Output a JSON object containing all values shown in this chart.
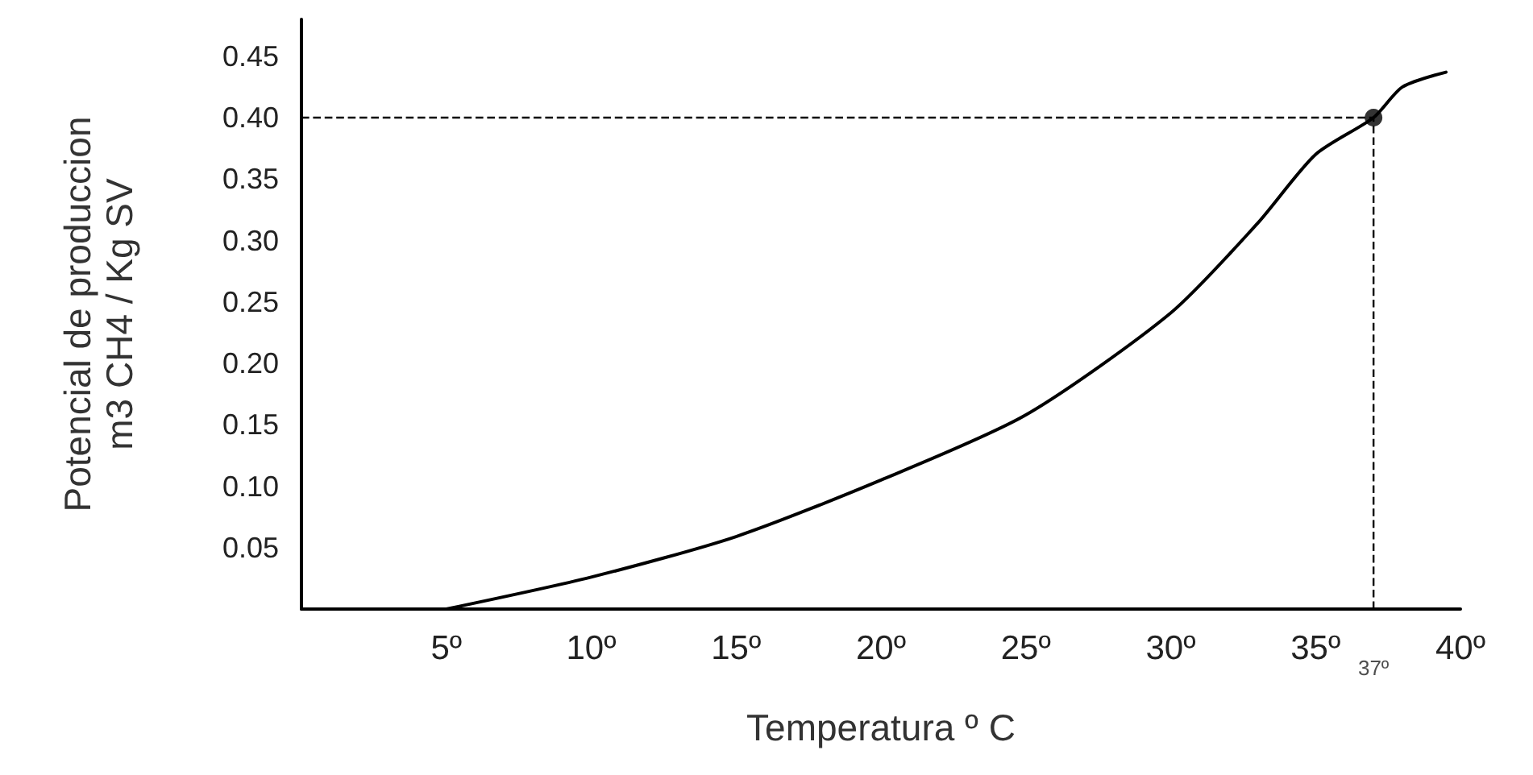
{
  "chart_data": {
    "type": "line",
    "xlabel": "Temperatura º C",
    "ylabel": "Potencial de produccion\nm3 CH4 / Kg SV",
    "xlim": [
      0,
      40
    ],
    "ylim": [
      0,
      0.48
    ],
    "xticks": [
      {
        "value": 5,
        "label": "5º"
      },
      {
        "value": 10,
        "label": "10º"
      },
      {
        "value": 15,
        "label": "15º"
      },
      {
        "value": 20,
        "label": "20º"
      },
      {
        "value": 25,
        "label": "25º"
      },
      {
        "value": 30,
        "label": "30º"
      },
      {
        "value": 35,
        "label": "35º"
      },
      {
        "value": 40,
        "label": "40º"
      }
    ],
    "yticks": [
      {
        "value": 0.05,
        "label": "0.05"
      },
      {
        "value": 0.1,
        "label": "0.10"
      },
      {
        "value": 0.15,
        "label": "0.15"
      },
      {
        "value": 0.2,
        "label": "0.20"
      },
      {
        "value": 0.25,
        "label": "0.25"
      },
      {
        "value": 0.3,
        "label": "0.30"
      },
      {
        "value": 0.35,
        "label": "0.35"
      },
      {
        "value": 0.4,
        "label": "0.40"
      },
      {
        "value": 0.45,
        "label": "0.45"
      }
    ],
    "series": [
      {
        "color": "#000000",
        "x": [
          5,
          10,
          15,
          20,
          25,
          30,
          33,
          35,
          37,
          38,
          39.5
        ],
        "values": [
          0,
          0.026,
          0.059,
          0.105,
          0.158,
          0.241,
          0.314,
          0.37,
          0.4,
          0.425,
          0.437
        ]
      },
      {
        "type": "scatter",
        "marker": "circle",
        "color": "#000000",
        "x": [
          37
        ],
        "values": [
          0.4
        ]
      }
    ],
    "ref_lines": [
      {
        "axis": "y",
        "value": 0.4,
        "color": "#000000",
        "line_style": "dashed"
      },
      {
        "axis": "x",
        "value": 37,
        "color": "#000000",
        "line_style": "dashed"
      }
    ],
    "annotations": [
      {
        "text": "37º",
        "x": 37,
        "y": 0
      }
    ],
    "grid": false,
    "marker": "none",
    "line_style": "solid"
  }
}
